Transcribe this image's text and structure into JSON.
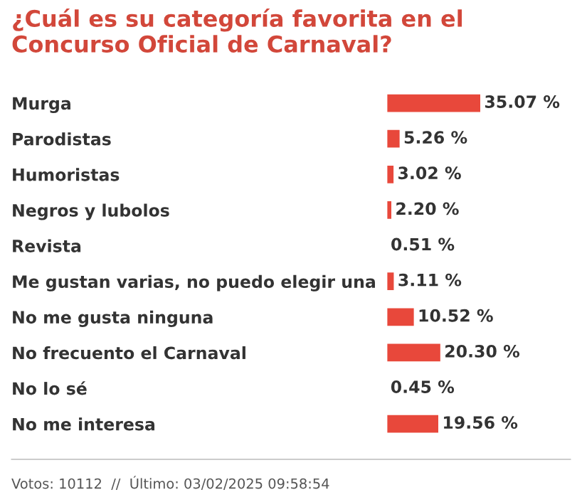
{
  "chart_data": {
    "type": "bar",
    "orientation": "horizontal",
    "title": "¿Cuál es su categoría favorita en el Concurso Oficial de Carnaval?",
    "categories": [
      "Murga",
      "Parodistas",
      "Humoristas",
      "Negros y lubolos",
      "Revista",
      "Me gustan varias, no puedo elegir una",
      "No me gusta ninguna",
      "No frecuento el Carnaval",
      "No lo sé",
      "No me interesa"
    ],
    "values": [
      35.07,
      5.26,
      3.02,
      2.2,
      0.51,
      3.11,
      10.52,
      20.3,
      0.45,
      19.56
    ],
    "value_labels": [
      "35.07 %",
      "5.26 %",
      "3.02 %",
      "2.20 %",
      "0.51 %",
      "3.11 %",
      "10.52 %",
      "20.30 %",
      "0.45 %",
      "19.56 %"
    ],
    "color": "#e8483b",
    "annotations": [
      "Votos: 10112  //  Último: 03/02/2025 09:58:54"
    ]
  }
}
